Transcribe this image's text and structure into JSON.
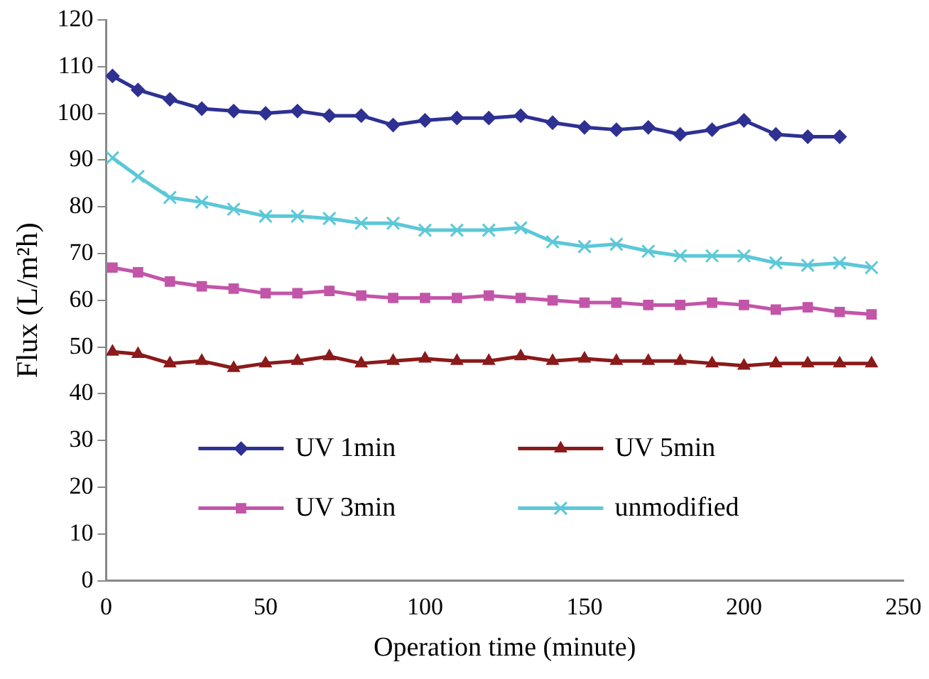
{
  "chart_data": {
    "type": "line",
    "xlabel": "Operation time (minute)",
    "ylabel": "Flux (L/m²h)",
    "xlim": [
      0,
      250
    ],
    "xticks": [
      0,
      50,
      100,
      150,
      200,
      250
    ],
    "ylim": [
      0,
      120
    ],
    "yticks": [
      0,
      10,
      20,
      30,
      40,
      50,
      60,
      70,
      80,
      90,
      100,
      110,
      120
    ],
    "grid": false,
    "legend": "bottom",
    "series": [
      {
        "name": "UV 1min",
        "color": "#2e3192",
        "marker": "diamond",
        "x": [
          2,
          10,
          20,
          30,
          40,
          50,
          60,
          70,
          80,
          90,
          100,
          110,
          120,
          130,
          140,
          150,
          160,
          170,
          180,
          190,
          200,
          210,
          220,
          230
        ],
        "values": [
          108,
          105,
          103,
          101,
          100.5,
          100,
          100.5,
          99.5,
          99.5,
          97.5,
          98.5,
          99,
          99,
          99.5,
          98,
          97,
          96.5,
          97,
          95.5,
          96.5,
          98.5,
          95.5,
          95,
          95
        ]
      },
      {
        "name": "UV 5min",
        "color": "#8b1a1a",
        "marker": "triangle",
        "x": [
          2,
          10,
          20,
          30,
          40,
          50,
          60,
          70,
          80,
          90,
          100,
          110,
          120,
          130,
          140,
          150,
          160,
          170,
          180,
          190,
          200,
          210,
          220,
          230,
          240
        ],
        "values": [
          49,
          48.5,
          46.5,
          47,
          45.5,
          46.5,
          47,
          48,
          46.5,
          47,
          47.5,
          47,
          47,
          48,
          47,
          47.5,
          47,
          47,
          47,
          46.5,
          46,
          46.5,
          46.5,
          46.5,
          46.5
        ]
      },
      {
        "name": "UV 3min",
        "color": "#c355a8",
        "marker": "square",
        "x": [
          2,
          10,
          20,
          30,
          40,
          50,
          60,
          70,
          80,
          90,
          100,
          110,
          120,
          130,
          140,
          150,
          160,
          170,
          180,
          190,
          200,
          210,
          220,
          230,
          240
        ],
        "values": [
          67,
          66,
          64,
          63,
          62.5,
          61.5,
          61.5,
          62,
          61,
          60.5,
          60.5,
          60.5,
          61,
          60.5,
          60,
          59.5,
          59.5,
          59,
          59,
          59.5,
          59,
          58,
          58.5,
          57.5,
          57
        ]
      },
      {
        "name": "unmodified",
        "color": "#5bc8d8",
        "marker": "cross",
        "x": [
          2,
          10,
          20,
          30,
          40,
          50,
          60,
          70,
          80,
          90,
          100,
          110,
          120,
          130,
          140,
          150,
          160,
          170,
          180,
          190,
          200,
          210,
          220,
          230,
          240
        ],
        "values": [
          90.5,
          86.5,
          82,
          81,
          79.5,
          78,
          78,
          77.5,
          76.5,
          76.5,
          75,
          75,
          75,
          75.5,
          72.5,
          71.5,
          72,
          70.5,
          69.5,
          69.5,
          69.5,
          68,
          67.5,
          68,
          67
        ]
      }
    ]
  }
}
